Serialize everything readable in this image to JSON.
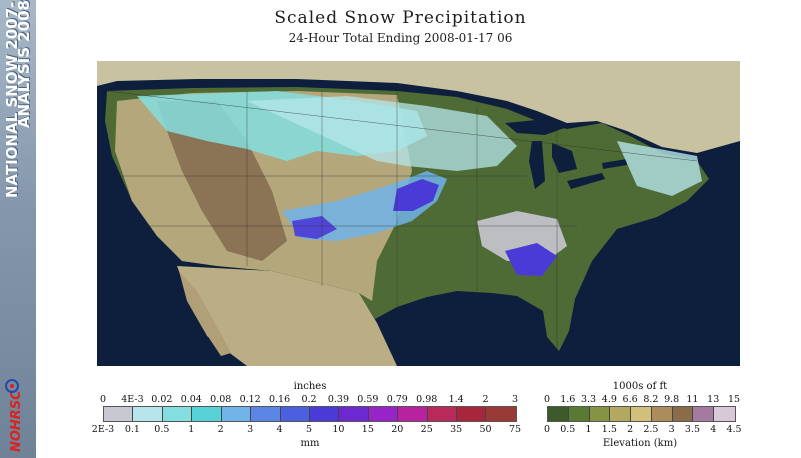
{
  "sidebar": {
    "line1": "NATIONAL SNOW",
    "line1_suffix": "2007-",
    "line2": "ANALYSIS",
    "line2_suffix": "2008",
    "logo_text": "NOHRSC"
  },
  "header": {
    "title": "Scaled Snow Precipitation",
    "subtitle": "24-Hour Total Ending 2008-01-17 06"
  },
  "precip_legend": {
    "top_title": "inches",
    "bottom_title": "mm",
    "top_ticks": [
      "0",
      "4E-3",
      "0.02",
      "0.04",
      "0.08",
      "0.12",
      "0.16",
      "0.2",
      "0.39",
      "0.59",
      "0.79",
      "0.98",
      "1.4",
      "2",
      "3"
    ],
    "bottom_ticks": [
      "2E-3",
      "0.1",
      "0.5",
      "1",
      "2",
      "3",
      "4",
      "5",
      "10",
      "15",
      "20",
      "25",
      "35",
      "50",
      "75"
    ],
    "colors": [
      "#c8c8d2",
      "#b5e5ea",
      "#84dedf",
      "#56d2d8",
      "#6fb3e9",
      "#5b86e6",
      "#4b5fe0",
      "#4b3bd6",
      "#6d29d1",
      "#9824c9",
      "#b8229e",
      "#b82a5a",
      "#a8263c",
      "#9a3a36"
    ]
  },
  "elevation_legend": {
    "top_title": "1000s of ft",
    "bottom_title": "Elevation (km)",
    "top_ticks": [
      "0",
      "1.6",
      "3.3",
      "4.9",
      "6.6",
      "8.2",
      "9.8",
      "11",
      "13",
      "15"
    ],
    "bottom_ticks": [
      "0",
      "0.5",
      "1",
      "1.5",
      "2",
      "2.5",
      "3",
      "3.5",
      "4",
      "4.5"
    ],
    "colors": [
      "#3d5a2a",
      "#5a7a34",
      "#859442",
      "#b4a860",
      "#d2bf79",
      "#ad8c5c",
      "#8a6c48",
      "#a57aa1",
      "#d8c8d8"
    ]
  },
  "map_colors": {
    "ocean": "#0d1f3c",
    "canada": "#c9c2a0",
    "mexico": "#bcae84",
    "lowland": "#4f6b35",
    "plains": "#b5a77c",
    "mountain": "#8a7455"
  }
}
